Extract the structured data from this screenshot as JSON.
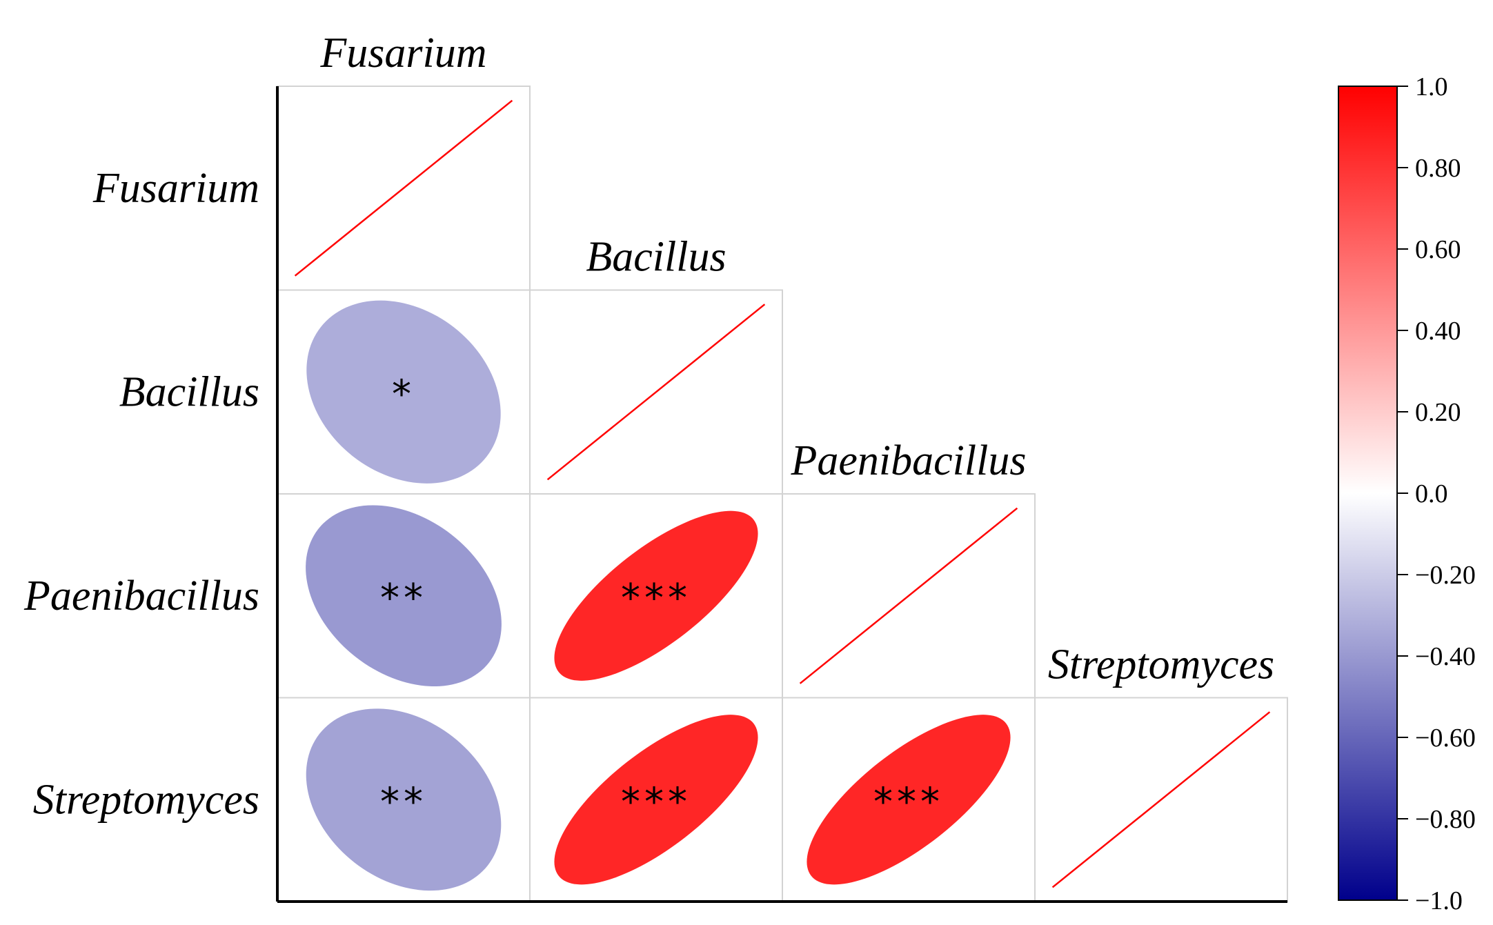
{
  "chart_data": {
    "type": "heatmap",
    "title": "",
    "variables": [
      "Fusarium",
      "Bacillus",
      "Paenibacillus",
      "Streptomyces"
    ],
    "matrix": [
      [
        1.0,
        -0.32,
        -0.4,
        -0.36
      ],
      [
        -0.32,
        1.0,
        0.85,
        0.85
      ],
      [
        -0.4,
        0.85,
        1.0,
        0.85
      ],
      [
        -0.36,
        0.85,
        0.85,
        1.0
      ]
    ],
    "significance": [
      [
        "",
        "*",
        "**",
        "**"
      ],
      [
        "*",
        "",
        "***",
        "***"
      ],
      [
        "**",
        "***",
        "",
        "***"
      ],
      [
        "**",
        "***",
        "***",
        ""
      ]
    ],
    "layout_style": "lower-triangle",
    "diagonal": "line",
    "colorbar": {
      "range": [
        -1.0,
        1.0
      ],
      "ticks": [
        1.0,
        0.8,
        0.6,
        0.4,
        0.2,
        0.0,
        -0.2,
        -0.4,
        -0.6,
        -0.8,
        -1.0
      ],
      "tick_labels": [
        "1.0",
        "0.80",
        "0.60",
        "0.40",
        "0.20",
        "0.0",
        "−0.20",
        "−0.40",
        "−0.60",
        "−0.80",
        "−1.0"
      ],
      "colors": {
        "low": "#00008b",
        "mid": "#ffffff",
        "high": "#ff0000"
      },
      "placement": "right"
    },
    "diagonal_color": "#ff0000"
  }
}
